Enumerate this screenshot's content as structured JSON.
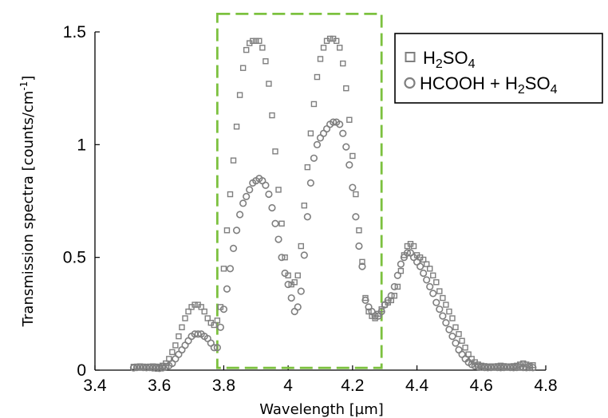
{
  "chart_data": {
    "type": "scatter",
    "title": "",
    "xlabel": "Wavelength [µm]",
    "ylabel": "Transmission spectra [counts/cm",
    "ylabel_superscript": "-1",
    "ylabel_suffix": "]",
    "xlim": [
      3.4,
      4.8
    ],
    "ylim": [
      0,
      1.5
    ],
    "xticks": [
      3.4,
      3.6,
      3.8,
      4.0,
      4.2,
      4.4,
      4.6,
      4.8
    ],
    "xtick_labels": [
      "3.4",
      "3.6",
      "3.8",
      "4",
      "4.2",
      "4.4",
      "4.6",
      "4.8"
    ],
    "yticks": [
      0,
      0.5,
      1,
      1.5
    ],
    "ytick_labels": [
      "0",
      "0.5",
      "1",
      "1.5"
    ],
    "grid": false,
    "legend_position": "top-right",
    "highlight_box": {
      "x": [
        3.78,
        4.29
      ],
      "y": [
        0.01,
        1.58
      ],
      "color": "#7cc13f",
      "style": "dashed"
    },
    "series": [
      {
        "name": "H2SO4",
        "legend_parts": [
          "H",
          "2",
          "SO",
          "4"
        ],
        "marker": "square",
        "color": "#7f7f7f",
        "x": [
          3.52,
          3.53,
          3.54,
          3.55,
          3.56,
          3.57,
          3.58,
          3.59,
          3.6,
          3.61,
          3.62,
          3.63,
          3.64,
          3.65,
          3.66,
          3.67,
          3.68,
          3.69,
          3.7,
          3.71,
          3.72,
          3.73,
          3.74,
          3.75,
          3.76,
          3.77,
          3.78,
          3.79,
          3.8,
          3.81,
          3.82,
          3.83,
          3.84,
          3.85,
          3.86,
          3.87,
          3.88,
          3.89,
          3.9,
          3.91,
          3.92,
          3.93,
          3.94,
          3.95,
          3.96,
          3.97,
          3.98,
          3.99,
          4.0,
          4.01,
          4.02,
          4.03,
          4.04,
          4.05,
          4.06,
          4.07,
          4.08,
          4.09,
          4.1,
          4.11,
          4.12,
          4.13,
          4.14,
          4.15,
          4.16,
          4.17,
          4.18,
          4.19,
          4.2,
          4.21,
          4.22,
          4.23,
          4.24,
          4.25,
          4.26,
          4.27,
          4.28,
          4.29,
          4.3,
          4.31,
          4.32,
          4.33,
          4.34,
          4.35,
          4.36,
          4.37,
          4.38,
          4.39,
          4.4,
          4.41,
          4.42,
          4.43,
          4.44,
          4.45,
          4.46,
          4.47,
          4.48,
          4.49,
          4.5,
          4.51,
          4.52,
          4.53,
          4.54,
          4.55,
          4.56,
          4.57,
          4.58,
          4.59,
          4.6,
          4.61,
          4.62,
          4.63,
          4.64,
          4.65,
          4.66,
          4.67,
          4.68,
          4.69,
          4.7,
          4.71,
          4.72,
          4.73,
          4.74,
          4.75,
          4.76
        ],
        "y": [
          0.015,
          0.016,
          0.017,
          0.016,
          0.015,
          0.016,
          0.017,
          0.016,
          0.015,
          0.02,
          0.03,
          0.05,
          0.08,
          0.11,
          0.15,
          0.19,
          0.23,
          0.26,
          0.28,
          0.29,
          0.29,
          0.28,
          0.26,
          0.23,
          0.21,
          0.2,
          0.22,
          0.28,
          0.45,
          0.62,
          0.78,
          0.93,
          1.08,
          1.22,
          1.34,
          1.42,
          1.45,
          1.46,
          1.46,
          1.46,
          1.43,
          1.37,
          1.27,
          1.13,
          0.97,
          0.8,
          0.65,
          0.5,
          0.42,
          0.38,
          0.39,
          0.42,
          0.55,
          0.73,
          0.9,
          1.05,
          1.18,
          1.3,
          1.38,
          1.43,
          1.46,
          1.47,
          1.47,
          1.46,
          1.43,
          1.36,
          1.25,
          1.11,
          0.95,
          0.78,
          0.62,
          0.48,
          0.32,
          0.26,
          0.24,
          0.23,
          0.25,
          0.27,
          0.29,
          0.3,
          0.31,
          0.33,
          0.37,
          0.44,
          0.51,
          0.55,
          0.56,
          0.55,
          0.51,
          0.5,
          0.49,
          0.47,
          0.45,
          0.42,
          0.39,
          0.35,
          0.32,
          0.29,
          0.26,
          0.23,
          0.19,
          0.16,
          0.13,
          0.1,
          0.07,
          0.05,
          0.035,
          0.025,
          0.02,
          0.018,
          0.016,
          0.017,
          0.016,
          0.018,
          0.02,
          0.018,
          0.016,
          0.017,
          0.018,
          0.02,
          0.025,
          0.03,
          0.025,
          0.02,
          0.022
        ]
      },
      {
        "name": "HCOOH + H2SO4",
        "legend_parts": [
          "HCOOH + H",
          "2",
          "SO",
          "4"
        ],
        "marker": "circle",
        "color": "#7f7f7f",
        "x": [
          3.52,
          3.53,
          3.54,
          3.55,
          3.56,
          3.57,
          3.58,
          3.59,
          3.6,
          3.61,
          3.62,
          3.63,
          3.64,
          3.65,
          3.66,
          3.67,
          3.68,
          3.69,
          3.7,
          3.71,
          3.72,
          3.73,
          3.74,
          3.75,
          3.76,
          3.77,
          3.78,
          3.79,
          3.8,
          3.81,
          3.82,
          3.83,
          3.84,
          3.85,
          3.86,
          3.87,
          3.88,
          3.89,
          3.9,
          3.91,
          3.92,
          3.93,
          3.94,
          3.95,
          3.96,
          3.97,
          3.98,
          3.99,
          4.0,
          4.01,
          4.02,
          4.03,
          4.04,
          4.05,
          4.06,
          4.07,
          4.08,
          4.09,
          4.1,
          4.11,
          4.12,
          4.13,
          4.14,
          4.15,
          4.16,
          4.17,
          4.18,
          4.19,
          4.2,
          4.21,
          4.22,
          4.23,
          4.24,
          4.25,
          4.26,
          4.27,
          4.28,
          4.29,
          4.3,
          4.31,
          4.32,
          4.33,
          4.34,
          4.35,
          4.36,
          4.37,
          4.38,
          4.39,
          4.4,
          4.41,
          4.42,
          4.43,
          4.44,
          4.45,
          4.46,
          4.47,
          4.48,
          4.49,
          4.5,
          4.51,
          4.52,
          4.53,
          4.54,
          4.55,
          4.56,
          4.57,
          4.58,
          4.59,
          4.6,
          4.61,
          4.62,
          4.63,
          4.64,
          4.65,
          4.66,
          4.67,
          4.68,
          4.69,
          4.7,
          4.71,
          4.72,
          4.73,
          4.74,
          4.75,
          4.76
        ],
        "y": [
          0.01,
          0.012,
          0.013,
          0.012,
          0.011,
          0.012,
          0.01,
          0.009,
          0.008,
          0.01,
          0.015,
          0.02,
          0.03,
          0.05,
          0.07,
          0.09,
          0.11,
          0.13,
          0.15,
          0.16,
          0.16,
          0.16,
          0.15,
          0.14,
          0.12,
          0.1,
          0.1,
          0.19,
          0.27,
          0.36,
          0.45,
          0.54,
          0.62,
          0.69,
          0.74,
          0.77,
          0.8,
          0.83,
          0.84,
          0.85,
          0.84,
          0.82,
          0.78,
          0.72,
          0.65,
          0.58,
          0.5,
          0.43,
          0.38,
          0.32,
          0.26,
          0.28,
          0.35,
          0.51,
          0.68,
          0.83,
          0.94,
          1.0,
          1.03,
          1.05,
          1.07,
          1.09,
          1.1,
          1.1,
          1.09,
          1.05,
          0.99,
          0.91,
          0.81,
          0.68,
          0.55,
          0.46,
          0.31,
          0.28,
          0.26,
          0.24,
          0.24,
          0.26,
          0.29,
          0.31,
          0.33,
          0.37,
          0.42,
          0.47,
          0.5,
          0.52,
          0.52,
          0.5,
          0.48,
          0.46,
          0.43,
          0.4,
          0.37,
          0.34,
          0.3,
          0.27,
          0.24,
          0.21,
          0.18,
          0.15,
          0.12,
          0.09,
          0.07,
          0.05,
          0.035,
          0.025,
          0.018,
          0.015,
          0.013,
          0.012,
          0.011,
          0.012,
          0.013,
          0.012,
          0.011,
          0.012,
          0.013,
          0.012,
          0.011,
          0.012,
          0.013,
          0.012,
          0.011,
          0.012,
          0.011
        ]
      }
    ]
  }
}
